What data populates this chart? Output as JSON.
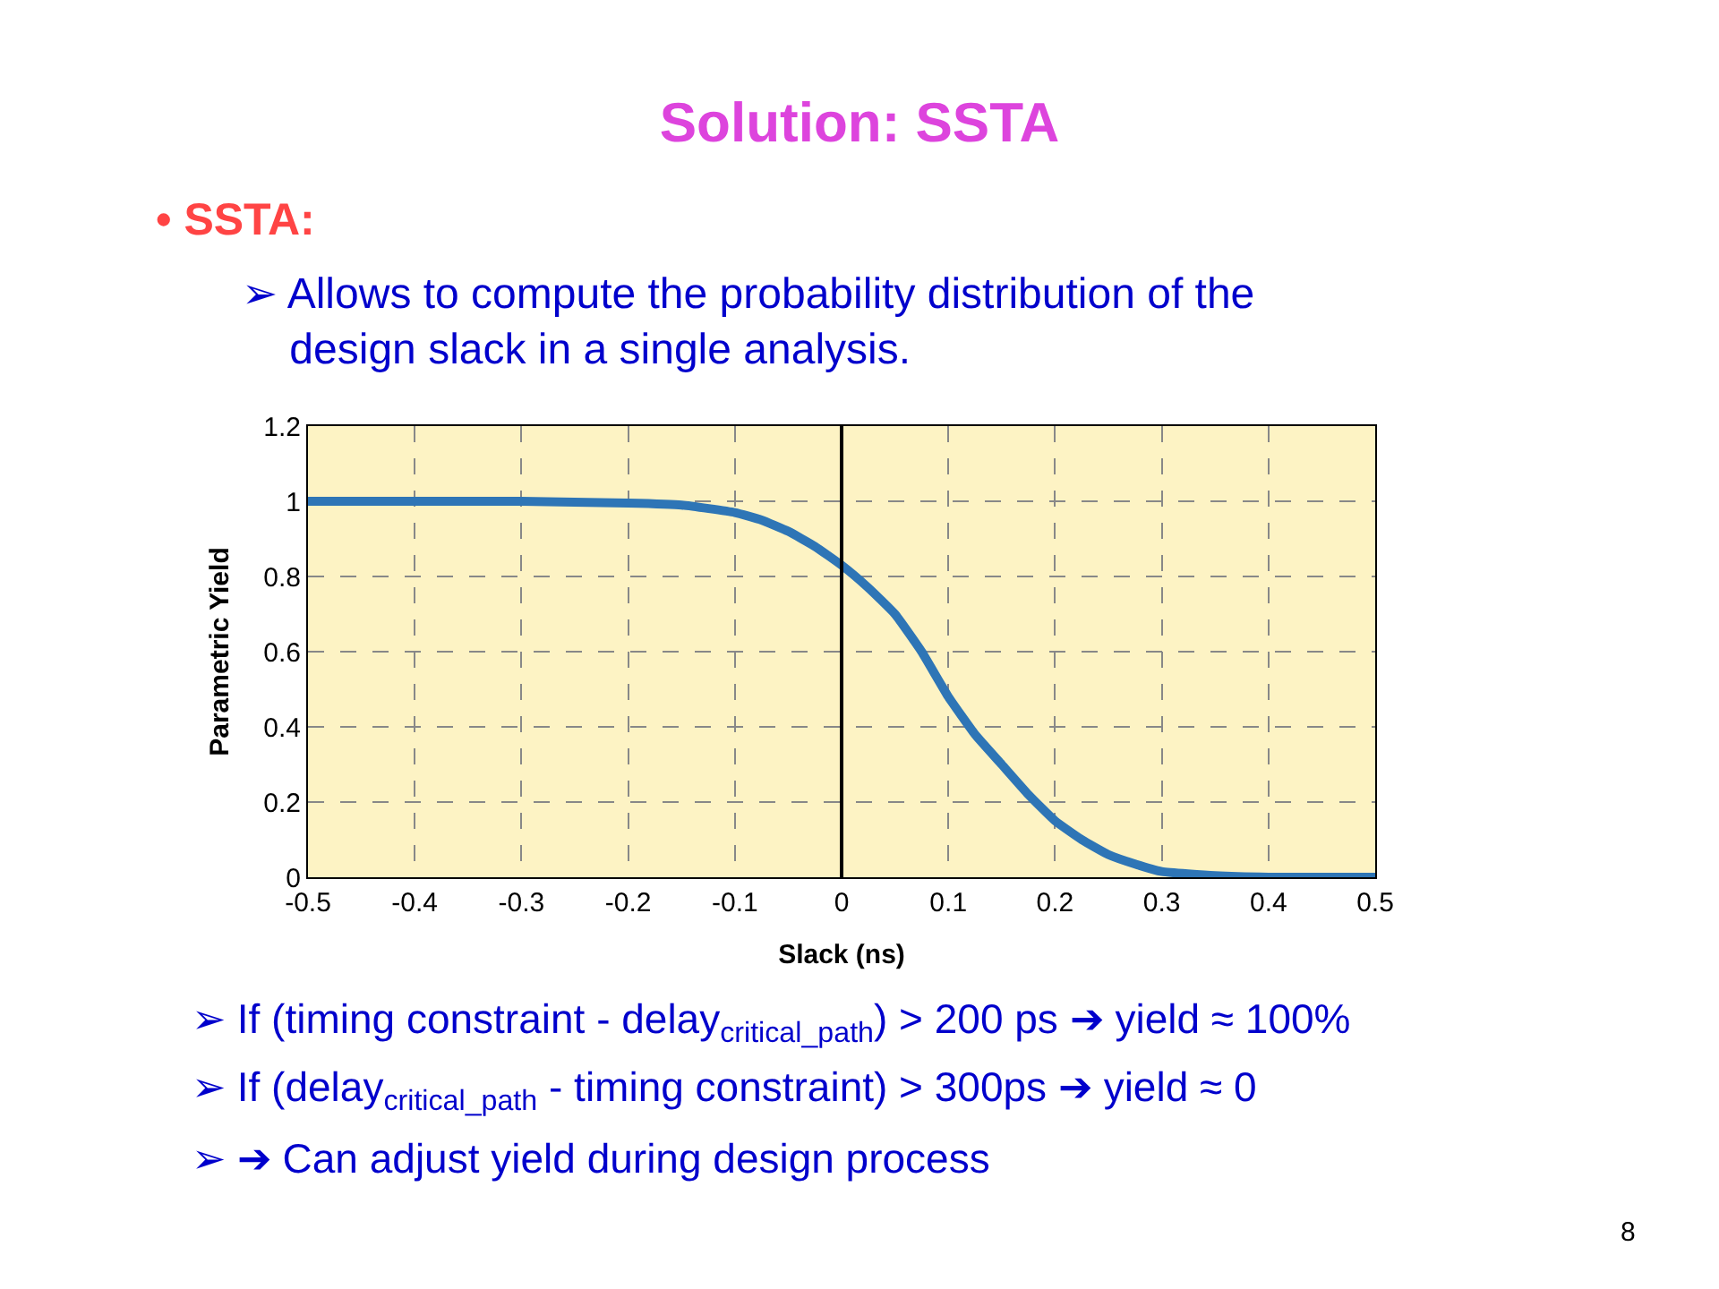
{
  "chart_data": {
    "type": "line",
    "title": "Solution: SSTA",
    "xlabel": "Slack (ns)",
    "ylabel": "Parametric Yield",
    "x": [
      -0.5,
      -0.4,
      -0.3,
      -0.2,
      -0.15,
      -0.1,
      -0.075,
      -0.05,
      -0.025,
      0,
      0.025,
      0.05,
      0.075,
      0.1,
      0.125,
      0.15,
      0.175,
      0.2,
      0.225,
      0.25,
      0.275,
      0.3,
      0.35,
      0.4,
      0.45,
      0.5
    ],
    "series": [
      {
        "color": "#2e75b6",
        "values": [
          1,
          1,
          1,
          0.995,
          0.99,
          0.97,
          0.95,
          0.92,
          0.88,
          0.83,
          0.77,
          0.7,
          0.6,
          0.48,
          0.38,
          0.3,
          0.22,
          0.15,
          0.1,
          0.06,
          0.035,
          0.015,
          0.004,
          0,
          0,
          0
        ]
      }
    ],
    "xlim": [
      -0.5,
      0.5
    ],
    "xticks": [
      -0.5,
      -0.4,
      -0.3,
      -0.2,
      -0.1,
      0,
      0.1,
      0.2,
      0.3,
      0.4,
      0.5
    ],
    "ylim": [
      0,
      1.2
    ],
    "yticks": [
      0,
      0.2,
      0.4,
      0.6,
      0.8,
      1,
      1.2
    ],
    "grid": true,
    "line_style": "solid",
    "marker": "none",
    "ref_lines": [
      {
        "axis": "x",
        "value": 0,
        "color": "#000000"
      }
    ],
    "annotations": [
      "• SSTA:",
      "➢ Allows to compute the probability distribution of the\n    design slack in a single analysis.",
      "➢ If (timing constraint - delay$_{critical_path}$) > 200 ps ➔ yield ≈ 100%",
      "➢ If (delay$_{critical_path}$ - timing constraint) > 300ps ➔ yield ≈ 0",
      "➢ ➔ Can adjust yield during design process",
      "8"
    ]
  }
}
